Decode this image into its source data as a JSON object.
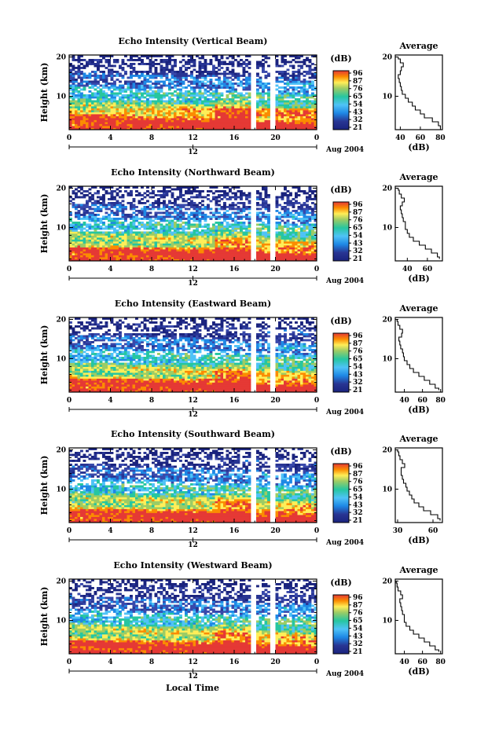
{
  "figure": {
    "xlabel": "Local Time",
    "date_label": "Aug 2004",
    "colorbar_unit": "(dB)",
    "average_title": "Average",
    "average_xlabel": "(dB)"
  },
  "chart_data": [
    {
      "type": "heatmap",
      "title": "Echo Intensity (Vertical Beam)",
      "ylabel": "Height (km)",
      "xlabel": "Local Time",
      "x_ticks": [
        "0",
        "4",
        "8",
        "12",
        "16",
        "20",
        "0"
      ],
      "x_range": [
        0,
        24
      ],
      "y_ticks": [
        "10",
        "20"
      ],
      "y_range": [
        1.5,
        20.5
      ],
      "date_axis": {
        "tick": "12",
        "label": "Aug 2004"
      },
      "colorbar": {
        "unit": "(dB)",
        "ticks": [
          "96",
          "87",
          "76",
          "65",
          "54",
          "43",
          "32",
          "21"
        ],
        "range": [
          21,
          96
        ]
      },
      "data_gaps_hours": [
        [
          17.7,
          18.2
        ],
        [
          19.6,
          20.0
        ]
      ],
      "strong_echo_below_km": 7,
      "average_profile": {
        "title": "Average",
        "xlabel": "(dB)",
        "x_ticks": [
          "40",
          "60",
          "80"
        ],
        "xlim": [
          35,
          82
        ],
        "y_ticks": [
          "10",
          "20"
        ],
        "ylim": [
          1.5,
          20.5
        ],
        "heights_km": [
          2,
          3,
          4,
          5,
          6,
          7,
          8,
          9,
          10,
          11,
          12,
          13,
          14,
          15,
          16,
          17,
          18,
          19,
          20
        ],
        "values_db": [
          80,
          78,
          72,
          64,
          60,
          55,
          52,
          48,
          45,
          42,
          41,
          40,
          39,
          38,
          40,
          41,
          43,
          40,
          38
        ]
      }
    },
    {
      "type": "heatmap",
      "title": "Echo Intensity (Northward Beam)",
      "ylabel": "Height (km)",
      "xlabel": "Local Time",
      "x_ticks": [
        "0",
        "4",
        "8",
        "12",
        "16",
        "20",
        "0"
      ],
      "x_range": [
        0,
        24
      ],
      "y_ticks": [
        "10",
        "20"
      ],
      "y_range": [
        1.5,
        20.5
      ],
      "date_axis": {
        "tick": "12",
        "label": "Aug 2004"
      },
      "colorbar": {
        "unit": "(dB)",
        "ticks": [
          "96",
          "87",
          "76",
          "65",
          "54",
          "43",
          "32",
          "21"
        ],
        "range": [
          21,
          96
        ]
      },
      "data_gaps_hours": [
        [
          17.7,
          18.2
        ],
        [
          19.6,
          20.0
        ]
      ],
      "strong_echo_below_km": 5,
      "average_profile": {
        "title": "Average",
        "xlabel": "(dB)",
        "x_ticks": [
          "40",
          "60"
        ],
        "xlim": [
          28,
          75
        ],
        "y_ticks": [
          "10",
          "20"
        ],
        "ylim": [
          1.5,
          20.5
        ],
        "heights_km": [
          2,
          3,
          4,
          5,
          6,
          7,
          8,
          9,
          10,
          11,
          12,
          13,
          14,
          15,
          16,
          17,
          18,
          19,
          20
        ],
        "values_db": [
          72,
          70,
          64,
          58,
          52,
          46,
          42,
          40,
          38,
          38,
          36,
          35,
          34,
          33,
          35,
          37,
          34,
          32,
          31
        ]
      }
    },
    {
      "type": "heatmap",
      "title": "Echo Intensity (Eastward Beam)",
      "ylabel": "Height (km)",
      "xlabel": "Local Time",
      "x_ticks": [
        "0",
        "4",
        "8",
        "12",
        "16",
        "20",
        "0"
      ],
      "x_range": [
        0,
        24
      ],
      "y_ticks": [
        "10",
        "20"
      ],
      "y_range": [
        1.5,
        20.5
      ],
      "date_axis": {
        "tick": "12",
        "label": "Aug 2004"
      },
      "colorbar": {
        "unit": "(dB)",
        "ticks": [
          "96",
          "87",
          "76",
          "65",
          "54",
          "43",
          "32",
          "21"
        ],
        "range": [
          21,
          96
        ]
      },
      "data_gaps_hours": [
        [
          17.7,
          18.2
        ],
        [
          19.6,
          20.0
        ]
      ],
      "strong_echo_below_km": 5,
      "average_profile": {
        "title": "Average",
        "xlabel": "(dB)",
        "x_ticks": [
          "40",
          "60",
          "80"
        ],
        "xlim": [
          30,
          82
        ],
        "y_ticks": [
          "10",
          "20"
        ],
        "ylim": [
          1.5,
          20.5
        ],
        "heights_km": [
          2,
          3,
          4,
          5,
          6,
          7,
          8,
          9,
          10,
          11,
          12,
          13,
          14,
          15,
          16,
          17,
          18,
          19,
          20
        ],
        "values_db": [
          78,
          74,
          68,
          62,
          56,
          50,
          46,
          43,
          40,
          39,
          38,
          36,
          35,
          34,
          37,
          38,
          35,
          33,
          32
        ]
      }
    },
    {
      "type": "heatmap",
      "title": "Echo Intensity (Southward Beam)",
      "ylabel": "Height (km)",
      "xlabel": "Local Time",
      "x_ticks": [
        "0",
        "4",
        "8",
        "12",
        "16",
        "20",
        "0"
      ],
      "x_range": [
        0,
        24
      ],
      "y_ticks": [
        "10",
        "20"
      ],
      "y_range": [
        1.5,
        20.5
      ],
      "date_axis": {
        "tick": "12",
        "label": "Aug 2004"
      },
      "colorbar": {
        "unit": "(dB)",
        "ticks": [
          "96",
          "87",
          "76",
          "65",
          "54",
          "43",
          "32",
          "21"
        ],
        "range": [
          21,
          96
        ]
      },
      "data_gaps_hours": [
        [
          17.7,
          18.2
        ],
        [
          19.6,
          20.0
        ]
      ],
      "strong_echo_below_km": 5,
      "average_profile": {
        "title": "Average",
        "xlabel": "(dB)",
        "x_ticks": [
          "30",
          "60"
        ],
        "xlim": [
          28,
          68
        ],
        "y_ticks": [
          "10",
          "20"
        ],
        "ylim": [
          1.5,
          20.5
        ],
        "heights_km": [
          2,
          3,
          4,
          5,
          6,
          7,
          8,
          9,
          10,
          11,
          12,
          13,
          14,
          15,
          16,
          17,
          18,
          19,
          20
        ],
        "values_db": [
          66,
          64,
          58,
          52,
          48,
          44,
          42,
          40,
          38,
          37,
          35,
          34,
          33,
          33,
          36,
          34,
          32,
          31,
          30
        ]
      }
    },
    {
      "type": "heatmap",
      "title": "Echo Intensity (Westward Beam)",
      "ylabel": "Height (km)",
      "xlabel": "Local Time",
      "x_ticks": [
        "0",
        "4",
        "8",
        "12",
        "16",
        "20",
        "0"
      ],
      "x_range": [
        0,
        24
      ],
      "y_ticks": [
        "10",
        "20"
      ],
      "y_range": [
        1.5,
        20.5
      ],
      "date_axis": {
        "tick": "12",
        "label": "Aug 2004"
      },
      "colorbar": {
        "unit": "(dB)",
        "ticks": [
          "96",
          "87",
          "76",
          "65",
          "54",
          "43",
          "32",
          "21"
        ],
        "range": [
          21,
          96
        ]
      },
      "data_gaps_hours": [
        [
          17.7,
          18.2
        ],
        [
          19.6,
          20.0
        ]
      ],
      "strong_echo_below_km": 5,
      "average_profile": {
        "title": "Average",
        "xlabel": "(dB)",
        "x_ticks": [
          "40",
          "60",
          "80"
        ],
        "xlim": [
          30,
          82
        ],
        "y_ticks": [
          "10",
          "20"
        ],
        "ylim": [
          1.5,
          20.5
        ],
        "heights_km": [
          2,
          3,
          4,
          5,
          6,
          7,
          8,
          9,
          10,
          11,
          12,
          13,
          14,
          15,
          16,
          17,
          18,
          19,
          20
        ],
        "values_db": [
          78,
          74,
          68,
          62,
          56,
          50,
          46,
          42,
          40,
          40,
          38,
          37,
          36,
          35,
          38,
          36,
          33,
          32,
          31
        ]
      }
    }
  ]
}
